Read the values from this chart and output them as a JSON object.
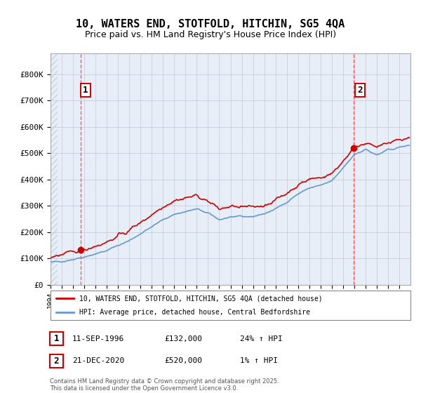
{
  "title": "10, WATERS END, STOTFOLD, HITCHIN, SG5 4QA",
  "subtitle": "Price paid vs. HM Land Registry's House Price Index (HPI)",
  "xlim_start": 1994.0,
  "xlim_end": 2026.0,
  "ylim": [
    0,
    880000
  ],
  "yticks": [
    0,
    100000,
    200000,
    300000,
    400000,
    500000,
    600000,
    700000,
    800000
  ],
  "ytick_labels": [
    "£0",
    "£100K",
    "£200K",
    "£300K",
    "£400K",
    "£500K",
    "£600K",
    "£700K",
    "£800K"
  ],
  "sale1_date": 1996.7,
  "sale1_price": 132000,
  "sale1_label": "1",
  "sale2_date": 2020.97,
  "sale2_price": 520000,
  "sale2_label": "2",
  "line_color_price": "#cc0000",
  "line_color_hpi": "#6699cc",
  "marker_color": "#cc0000",
  "vline_color": "#ff4444",
  "legend_line1": "10, WATERS END, STOTFOLD, HITCHIN, SG5 4QA (detached house)",
  "legend_line2": "HPI: Average price, detached house, Central Bedfordshire",
  "annotation1_date": "11-SEP-1996",
  "annotation1_price": "£132,000",
  "annotation1_hpi": "24% ↑ HPI",
  "annotation2_date": "21-DEC-2020",
  "annotation2_price": "£520,000",
  "annotation2_hpi": "1% ↑ HPI",
  "footer": "Contains HM Land Registry data © Crown copyright and database right 2025.\nThis data is licensed under the Open Government Licence v3.0.",
  "bg_color": "#ffffff",
  "plot_bg": "#e8eef8",
  "grid_color": "#c0c8d8",
  "title_fontsize": 11,
  "subtitle_fontsize": 9,
  "years_hpi_anchors": [
    1994,
    1995,
    1996,
    1997,
    1998,
    1999,
    2000,
    2001,
    2002,
    2003,
    2004,
    2005,
    2006,
    2007,
    2008,
    2009,
    2010,
    2011,
    2012,
    2013,
    2014,
    2015,
    2016,
    2017,
    2018,
    2019,
    2020,
    2021,
    2022,
    2023,
    2024,
    2025,
    2026
  ],
  "vals_hpi": [
    85000,
    90000,
    97000,
    107000,
    118000,
    130000,
    150000,
    168000,
    195000,
    220000,
    248000,
    268000,
    278000,
    288000,
    272000,
    248000,
    258000,
    258000,
    260000,
    270000,
    288000,
    315000,
    345000,
    368000,
    378000,
    393000,
    443000,
    495000,
    515000,
    492000,
    512000,
    522000,
    530000
  ]
}
